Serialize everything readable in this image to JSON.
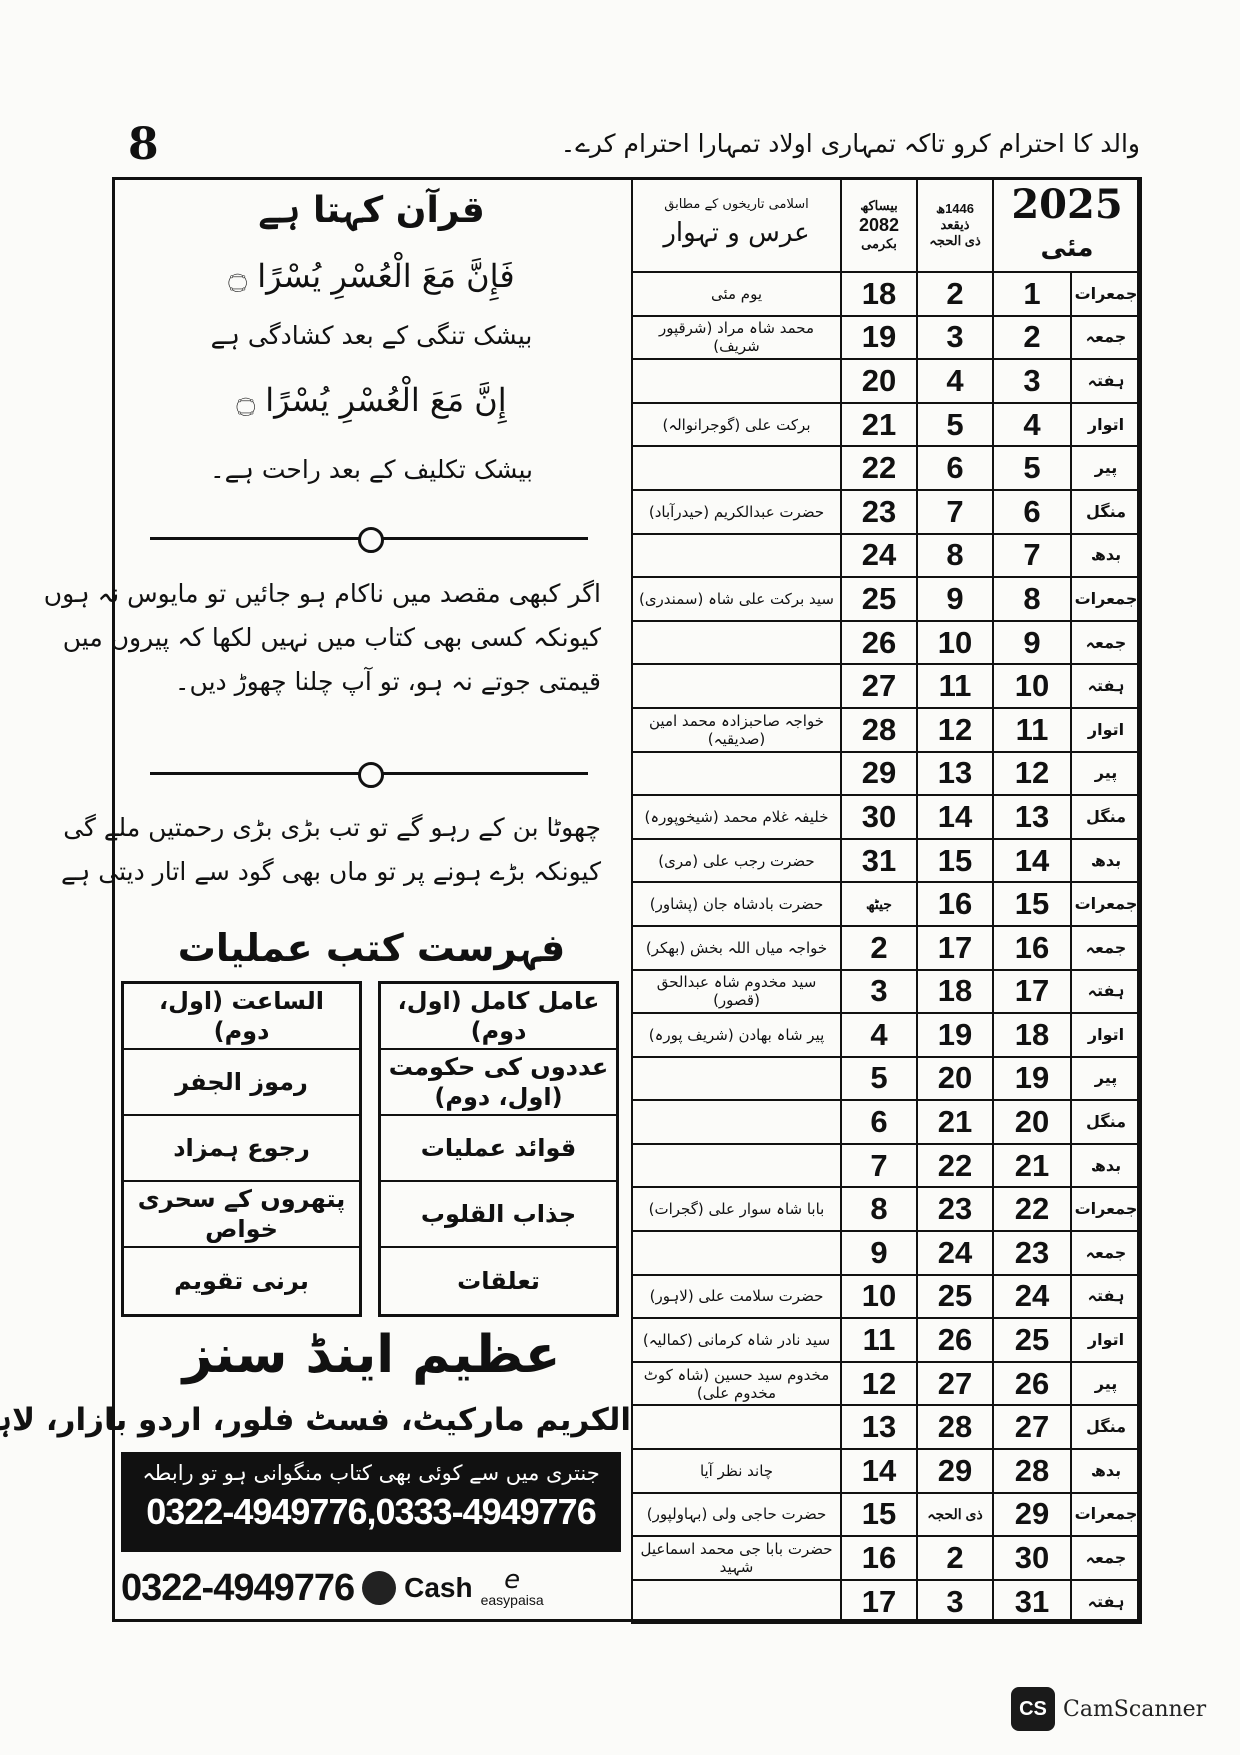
{
  "page_number": "8",
  "header_quote": "والد کا احترام کرو تاکہ تمہاری اولاد تمہارا احترام کرے۔",
  "calendar": {
    "header": {
      "events_sub": "اسلامی تاریخوں کے مطابق",
      "events_title": "عرس و تہوار",
      "bikrami_top": "بیساکھ",
      "bikrami_year": "2082",
      "bikrami_bottom": "بکرمی",
      "islamic_top": "1446ھ",
      "islamic_mid": "ذیقعد",
      "islamic_bottom": "ذی الحجہ",
      "year": "2025",
      "month": "مئی"
    },
    "rows": [
      {
        "weekday": "جمعرات",
        "date": "1",
        "islamic": "2",
        "bikrami": "18",
        "event": "یوم مئی"
      },
      {
        "weekday": "جمعہ",
        "date": "2",
        "islamic": "3",
        "bikrami": "19",
        "event": "محمد شاہ مراد (شرقپور شریف)"
      },
      {
        "weekday": "ہفتہ",
        "date": "3",
        "islamic": "4",
        "bikrami": "20",
        "event": ""
      },
      {
        "weekday": "اتوار",
        "date": "4",
        "islamic": "5",
        "bikrami": "21",
        "event": "برکت علی (گوجرانوالہ)"
      },
      {
        "weekday": "پیر",
        "date": "5",
        "islamic": "6",
        "bikrami": "22",
        "event": ""
      },
      {
        "weekday": "منگل",
        "date": "6",
        "islamic": "7",
        "bikrami": "23",
        "event": "حضرت عبدالکریم (حیدرآباد)"
      },
      {
        "weekday": "بدھ",
        "date": "7",
        "islamic": "8",
        "bikrami": "24",
        "event": ""
      },
      {
        "weekday": "جمعرات",
        "date": "8",
        "islamic": "9",
        "bikrami": "25",
        "event": "سید برکت علی شاہ (سمندری)"
      },
      {
        "weekday": "جمعہ",
        "date": "9",
        "islamic": "10",
        "bikrami": "26",
        "event": ""
      },
      {
        "weekday": "ہفتہ",
        "date": "10",
        "islamic": "11",
        "bikrami": "27",
        "event": ""
      },
      {
        "weekday": "اتوار",
        "date": "11",
        "islamic": "12",
        "bikrami": "28",
        "event": "خواجہ صاحبزادہ محمد امین (صدیقیہ)"
      },
      {
        "weekday": "پیر",
        "date": "12",
        "islamic": "13",
        "bikrami": "29",
        "event": ""
      },
      {
        "weekday": "منگل",
        "date": "13",
        "islamic": "14",
        "bikrami": "30",
        "event": "خلیفہ غلام محمد (شیخوپورہ)"
      },
      {
        "weekday": "بدھ",
        "date": "14",
        "islamic": "15",
        "bikrami": "31",
        "event": "حضرت رجب علی (مری)"
      },
      {
        "weekday": "جمعرات",
        "date": "15",
        "islamic": "16",
        "bikrami": "جیٹھ",
        "event": "حضرت بادشاہ جان (پشاور)"
      },
      {
        "weekday": "جمعہ",
        "date": "16",
        "islamic": "17",
        "bikrami": "2",
        "event": "خواجہ میاں اللہ بخش (بھکر)"
      },
      {
        "weekday": "ہفتہ",
        "date": "17",
        "islamic": "18",
        "bikrami": "3",
        "event": "سید مخدوم شاہ عبدالحق (قصور)"
      },
      {
        "weekday": "اتوار",
        "date": "18",
        "islamic": "19",
        "bikrami": "4",
        "event": "پیر شاہ بھادن (شریف پورہ)"
      },
      {
        "weekday": "پیر",
        "date": "19",
        "islamic": "20",
        "bikrami": "5",
        "event": ""
      },
      {
        "weekday": "منگل",
        "date": "20",
        "islamic": "21",
        "bikrami": "6",
        "event": ""
      },
      {
        "weekday": "بدھ",
        "date": "21",
        "islamic": "22",
        "bikrami": "7",
        "event": ""
      },
      {
        "weekday": "جمعرات",
        "date": "22",
        "islamic": "23",
        "bikrami": "8",
        "event": "بابا شاہ سوار علی (گجرات)"
      },
      {
        "weekday": "جمعہ",
        "date": "23",
        "islamic": "24",
        "bikrami": "9",
        "event": ""
      },
      {
        "weekday": "ہفتہ",
        "date": "24",
        "islamic": "25",
        "bikrami": "10",
        "event": "حضرت سلامت علی (لاہور)"
      },
      {
        "weekday": "اتوار",
        "date": "25",
        "islamic": "26",
        "bikrami": "11",
        "event": "سید نادر شاہ کرمانی (کمالیہ)"
      },
      {
        "weekday": "پیر",
        "date": "26",
        "islamic": "27",
        "bikrami": "12",
        "event": "مخدوم سید حسین (شاہ کوٹ مخدوم علی)"
      },
      {
        "weekday": "منگل",
        "date": "27",
        "islamic": "28",
        "bikrami": "13",
        "event": ""
      },
      {
        "weekday": "بدھ",
        "date": "28",
        "islamic": "29",
        "bikrami": "14",
        "event": "چاند نظر آیا"
      },
      {
        "weekday": "جمعرات",
        "date": "29",
        "islamic": "ذی الحجہ",
        "bikrami": "15",
        "event": "حضرت حاجی ولی (بہاولپور)"
      },
      {
        "weekday": "جمعہ",
        "date": "30",
        "islamic": "2",
        "bikrami": "16",
        "event": "حضرت بابا جی محمد اسماعیل شہید"
      },
      {
        "weekday": "ہفتہ",
        "date": "31",
        "islamic": "3",
        "bikrami": "17",
        "event": ""
      }
    ]
  },
  "quran": {
    "title": "قرآن کہتا ہے",
    "verse1": "فَإِنَّ مَعَ الْعُسْرِ يُسْرًا ۝",
    "translation1": "بیشک تنگی کے بعد کشادگی ہے",
    "verse2": "إِنَّ مَعَ الْعُسْرِ يُسْرًا ۝",
    "translation2": "بیشک تکلیف کے بعد راحت ہے۔"
  },
  "paragraph1": [
    "اگر کبھی مقصد میں ناکام ہو جائیں تو مایوس نہ ہوں",
    "کیونکہ کسی بھی کتاب میں نہیں لکھا کہ پیروں میں",
    "قیمتی جوتے نہ ہو، تو آپ چلنا چھوڑ دیں۔"
  ],
  "paragraph2": [
    "چھوٹا بن کے رہو گے تو تب بڑی بڑی رحمتیں ملے گی",
    "کیونکہ بڑے ہونے پر تو ماں بھی گود سے اتار دیتی ہے"
  ],
  "books": {
    "title": "فہرست کتب عملیات",
    "right_column": [
      "عامل کامل (اول، دوم)",
      "عددوں کی حکومت (اول، دوم)",
      "قوائد عملیات",
      "جذاب القلوب",
      "تعلقات"
    ],
    "left_column": [
      "الساعت (اول، دوم)",
      "رموز الجفر",
      "رجوع ہمزاد",
      "پتھروں کے سحری خواص",
      "برنی تقویم"
    ]
  },
  "publisher": {
    "name": "عظیم اینڈ سنز",
    "address": "الکریم مارکیٹ، فسٹ فلور، اردو بازار، لاہور",
    "contact_line": "جنتری میں سے کوئی بھی کتاب منگوانی ہو تو رابطہ",
    "phones": "0322-4949776,0333-4949776",
    "payment_phone": "0322-4949776",
    "jazzcash_label": "Cash",
    "easypaisa_label": "easypaisa"
  },
  "watermark": {
    "logo": "CS",
    "text": "CamScanner"
  }
}
